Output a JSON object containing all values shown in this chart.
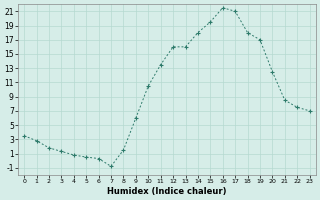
{
  "xlabel": "Humidex (Indice chaleur)",
  "ylabel": "",
  "x": [
    0,
    1,
    2,
    3,
    4,
    5,
    6,
    7,
    8,
    9,
    10,
    11,
    12,
    13,
    14,
    15,
    16,
    17,
    18,
    19,
    20,
    21,
    22,
    23
  ],
  "y": [
    3.5,
    2.8,
    1.8,
    1.3,
    0.8,
    0.5,
    0.3,
    -0.8,
    1.5,
    6.0,
    10.5,
    13.5,
    16.0,
    16.0,
    18.0,
    19.5,
    21.5,
    21.0,
    18.0,
    17.0,
    12.5,
    8.5,
    7.5,
    7.0
  ],
  "line_color": "#2d7a6a",
  "marker": "+",
  "marker_size": 3,
  "bg_color": "#d6ede8",
  "grid_color": "#b5d9d0",
  "xlim": [
    -0.5,
    23.5
  ],
  "ylim": [
    -2,
    22
  ],
  "yticks": [
    -1,
    1,
    3,
    5,
    7,
    9,
    11,
    13,
    15,
    17,
    19,
    21
  ],
  "xticks": [
    0,
    1,
    2,
    3,
    4,
    5,
    6,
    7,
    8,
    9,
    10,
    11,
    12,
    13,
    14,
    15,
    16,
    17,
    18,
    19,
    20,
    21,
    22,
    23
  ]
}
